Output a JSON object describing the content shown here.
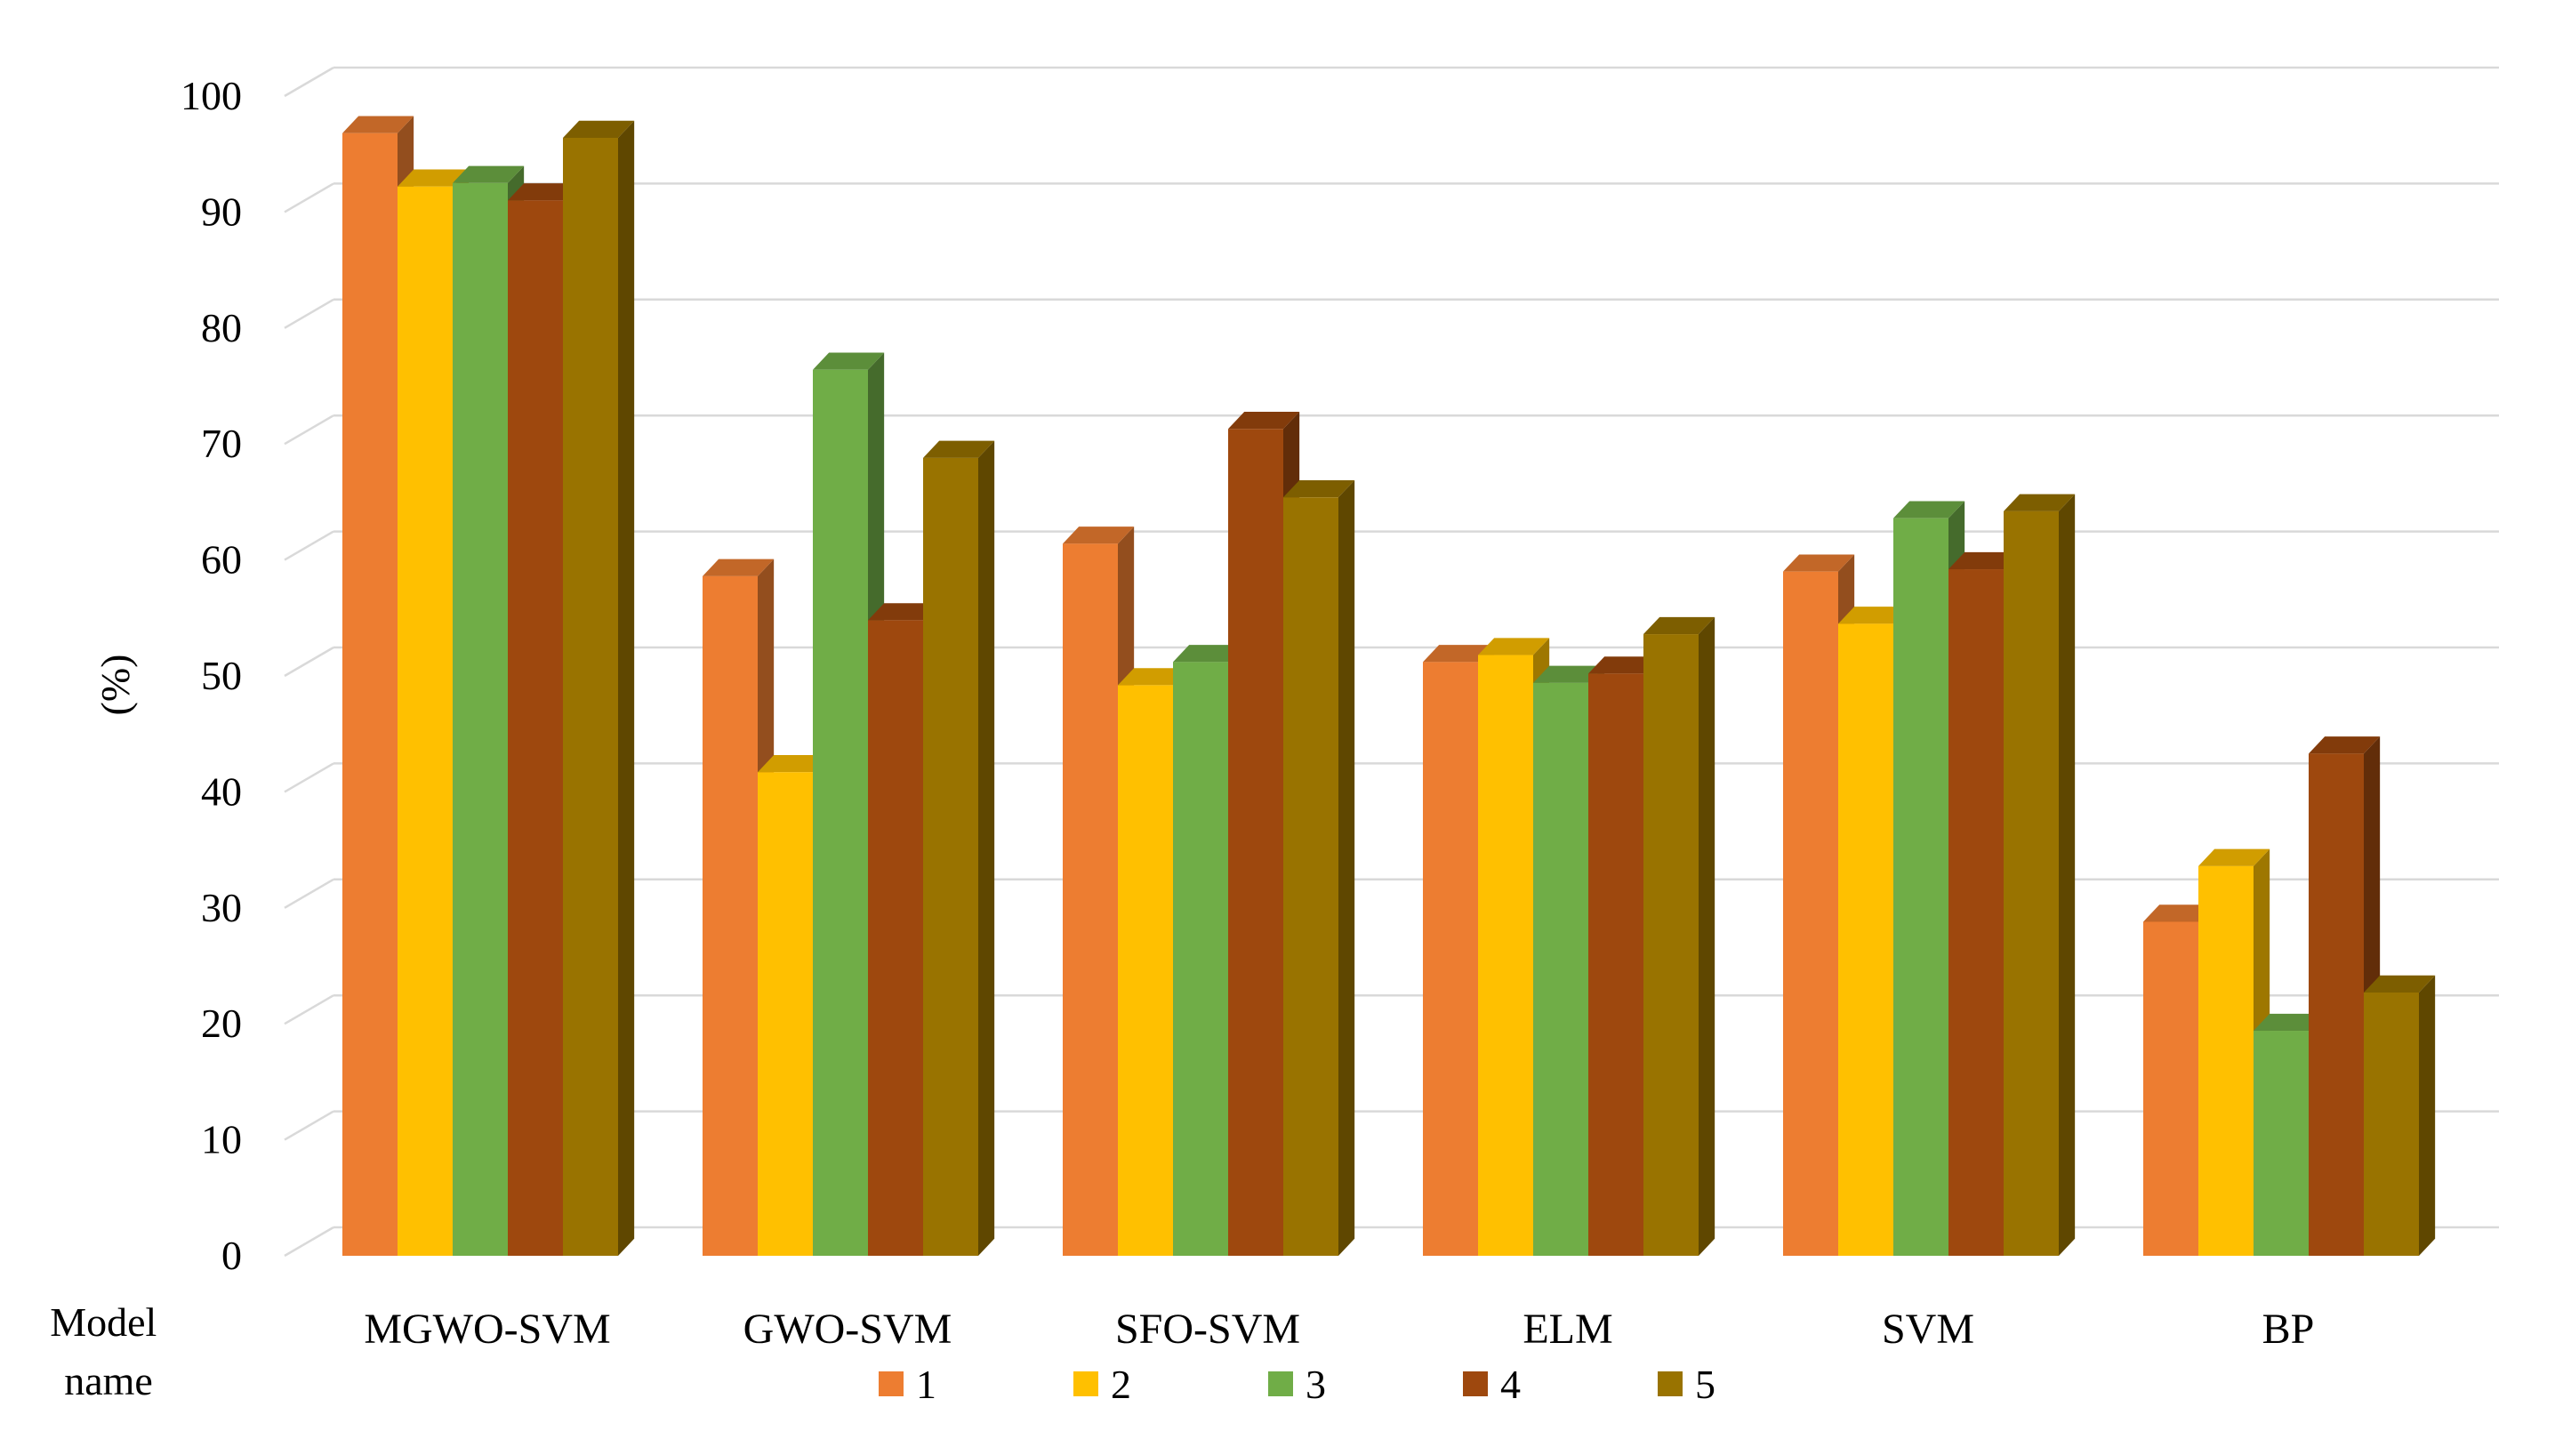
{
  "chart_data": {
    "type": "bar",
    "style": "3d-clustered-column",
    "title": "",
    "ylabel": "(%)",
    "xlabel": "Model name",
    "ylim": [
      0,
      100
    ],
    "yticks": [
      0,
      10,
      20,
      30,
      40,
      50,
      60,
      70,
      80,
      90,
      100
    ],
    "ytick_labels": [
      "0",
      "10",
      "20",
      "30",
      "40",
      "50",
      "60",
      "70",
      "80",
      "90",
      "100"
    ],
    "grid": true,
    "legend_position": "bottom-center",
    "categories": [
      "MGWO-SVM",
      "GWO-SVM",
      "SFO-SVM",
      "ELM",
      "SVM",
      "BP"
    ],
    "series": [
      {
        "name": "1",
        "color": "#ED7D31",
        "values": [
          96.8,
          58.6,
          61.4,
          51.2,
          59.0,
          28.8
        ]
      },
      {
        "name": "2",
        "color": "#FFC000",
        "values": [
          92.2,
          41.7,
          49.2,
          51.8,
          54.5,
          33.6
        ]
      },
      {
        "name": "3",
        "color": "#70AD47",
        "values": [
          92.5,
          76.4,
          51.2,
          49.4,
          63.6,
          19.4
        ]
      },
      {
        "name": "4",
        "color": "#9E480E",
        "values": [
          91.0,
          54.8,
          71.3,
          50.2,
          59.2,
          43.3
        ]
      },
      {
        "name": "5",
        "color": "#997300",
        "values": [
          96.4,
          68.8,
          65.4,
          53.6,
          64.2,
          22.7
        ]
      }
    ]
  }
}
